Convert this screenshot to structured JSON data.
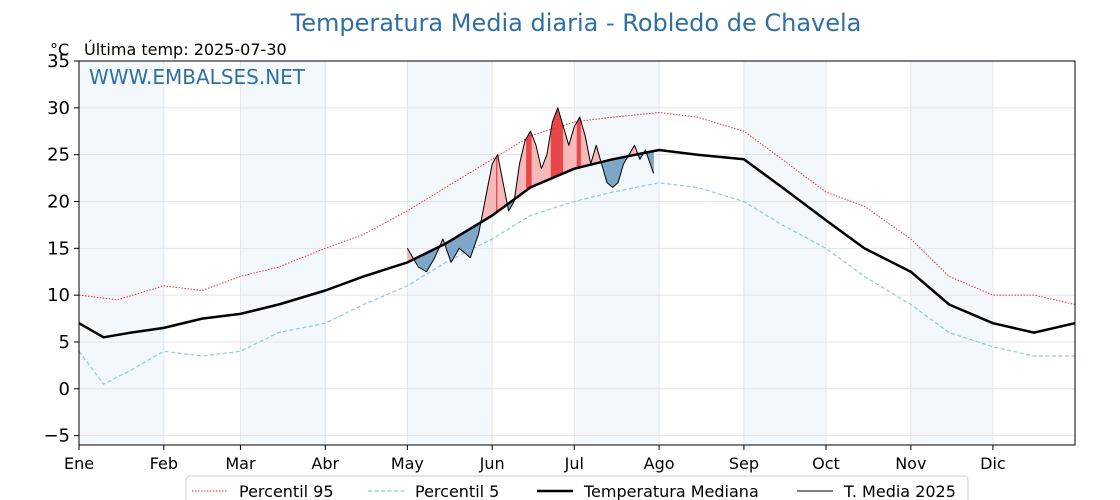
{
  "chart_data": {
    "type": "line",
    "title": "Temperatura Media diaria - Robledo de Chavela",
    "unit_label": "°C",
    "last_temp_label": "Última temp: 2025-07-30",
    "watermark": "WWW.EMBALSES.NET",
    "xlabel": "",
    "ylabel": "",
    "ylim": [
      -6,
      35
    ],
    "yticks": [
      -5,
      0,
      5,
      10,
      15,
      20,
      25,
      30,
      35
    ],
    "ytick_labels": [
      "−5",
      "0",
      "5",
      "10",
      "15",
      "20",
      "25",
      "30",
      "35"
    ],
    "xlim": [
      1,
      365
    ],
    "grid": true,
    "legend_position": "bottom-center",
    "months": [
      {
        "label": "Ene",
        "day": 1
      },
      {
        "label": "Feb",
        "day": 32
      },
      {
        "label": "Mar",
        "day": 60
      },
      {
        "label": "Abr",
        "day": 91
      },
      {
        "label": "May",
        "day": 121
      },
      {
        "label": "Jun",
        "day": 152
      },
      {
        "label": "Jul",
        "day": 182
      },
      {
        "label": "Ago",
        "day": 213
      },
      {
        "label": "Sep",
        "day": 244
      },
      {
        "label": "Oct",
        "day": 274
      },
      {
        "label": "Nov",
        "day": 305
      },
      {
        "label": "Dic",
        "day": 335
      }
    ],
    "series": [
      {
        "name": "Percentil 95",
        "color": "#e83030",
        "style": "dotted",
        "x": [
          1,
          15,
          32,
          46,
          60,
          74,
          91,
          105,
          121,
          135,
          152,
          166,
          182,
          196,
          213,
          227,
          244,
          258,
          274,
          288,
          305,
          319,
          335,
          350,
          365
        ],
        "y": [
          10,
          9.5,
          11,
          10.5,
          12,
          13,
          15,
          16.5,
          19,
          21.5,
          24.5,
          27,
          28.5,
          29,
          29.5,
          29,
          27.5,
          24.5,
          21,
          19.5,
          16,
          12,
          10,
          10,
          9
        ]
      },
      {
        "name": "Percentil 5",
        "color": "#8ec9d8",
        "style": "dashed",
        "x": [
          1,
          10,
          20,
          32,
          46,
          60,
          74,
          91,
          105,
          121,
          135,
          152,
          166,
          182,
          196,
          213,
          227,
          244,
          258,
          274,
          288,
          305,
          319,
          335,
          350,
          365
        ],
        "y": [
          4,
          0.5,
          2,
          4,
          3.5,
          4,
          6,
          7,
          9,
          11,
          13.5,
          16,
          18.5,
          20,
          21,
          22,
          21.5,
          20,
          17.5,
          15,
          12,
          9,
          6,
          4.5,
          3.5,
          3.5
        ]
      },
      {
        "name": "Temperatura Mediana",
        "color": "#000000",
        "style": "solid-thick",
        "x": [
          1,
          10,
          20,
          32,
          46,
          60,
          74,
          91,
          105,
          121,
          135,
          152,
          166,
          182,
          196,
          213,
          227,
          244,
          258,
          274,
          288,
          305,
          319,
          335,
          350,
          365
        ],
        "y": [
          7,
          5.5,
          6,
          6.5,
          7.5,
          8,
          9,
          10.5,
          12,
          13.5,
          15.5,
          18.5,
          21.5,
          23.5,
          24.5,
          25.5,
          25,
          24.5,
          21.5,
          18,
          15,
          12.5,
          9,
          7,
          6,
          7
        ]
      },
      {
        "name": "T. Media 2025",
        "color": "#000000",
        "style": "solid-thin",
        "x": [
          121,
          125,
          128,
          131,
          134,
          137,
          140,
          144,
          147,
          150,
          152,
          154,
          156,
          158,
          160,
          162,
          164,
          166,
          168,
          170,
          172,
          174,
          176,
          178,
          180,
          182,
          184,
          186,
          188,
          190,
          192,
          194,
          196,
          198,
          200,
          202,
          204,
          206,
          208,
          211
        ],
        "y": [
          15,
          13,
          12.5,
          14,
          16,
          13.5,
          15,
          14,
          16.5,
          21,
          24,
          25,
          22,
          19,
          20,
          24,
          26.5,
          27.5,
          26,
          23.5,
          25,
          28.5,
          30,
          28,
          26,
          28,
          29,
          27,
          24,
          26,
          24,
          22,
          21.5,
          22,
          24,
          25,
          26,
          24.5,
          25.5,
          23
        ]
      }
    ]
  }
}
